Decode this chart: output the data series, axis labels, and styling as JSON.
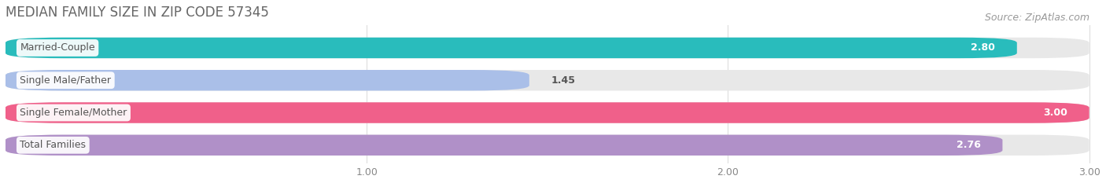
{
  "title": "MEDIAN FAMILY SIZE IN ZIP CODE 57345",
  "source": "Source: ZipAtlas.com",
  "categories": [
    "Married-Couple",
    "Single Male/Father",
    "Single Female/Mother",
    "Total Families"
  ],
  "values": [
    2.8,
    1.45,
    3.0,
    2.76
  ],
  "bar_colors": [
    "#29BCBC",
    "#AABFE8",
    "#F0608A",
    "#B090C8"
  ],
  "value_labels": [
    "2.80",
    "1.45",
    "3.00",
    "2.76"
  ],
  "value_inside": [
    true,
    false,
    true,
    true
  ],
  "xlim_min": 0.0,
  "xlim_max": 3.0,
  "xticks": [
    1.0,
    2.0,
    3.0
  ],
  "xticklabels": [
    "1.00",
    "2.00",
    "3.00"
  ],
  "background_color": "#ffffff",
  "bar_bg_color": "#e8e8e8",
  "bar_height": 0.32,
  "bar_gap": 0.18,
  "title_fontsize": 12,
  "source_fontsize": 9,
  "label_fontsize": 9,
  "value_fontsize": 9,
  "tick_fontsize": 9,
  "title_color": "#666666",
  "source_color": "#999999",
  "label_text_color": "#555555",
  "value_inside_color": "#ffffff",
  "value_outside_color": "#555555",
  "tick_color": "#888888",
  "grid_color": "#dddddd"
}
